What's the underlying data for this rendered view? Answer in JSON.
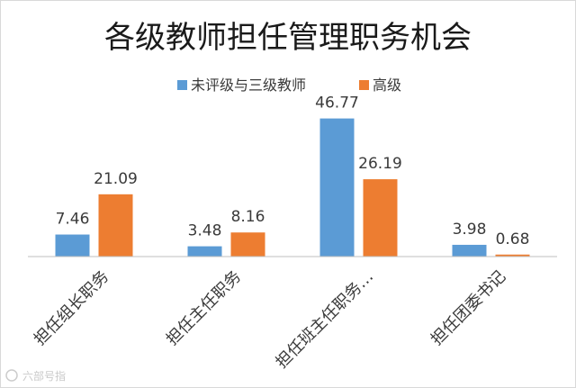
{
  "chart_data": {
    "type": "bar",
    "title": "各级教师担任管理职务机会",
    "categories": [
      "担任组长职务",
      "担任主任职务",
      "担任班主任职务…",
      "担任团委书记"
    ],
    "series": [
      {
        "name": "未评级与三级教师",
        "color": "#5b9bd5",
        "values": [
          7.46,
          3.48,
          46.77,
          3.98
        ],
        "labels": [
          "7.46",
          "3.48",
          "46.77",
          "3.98"
        ]
      },
      {
        "name": "高级",
        "color": "#ed7d31",
        "values": [
          21.09,
          8.16,
          26.19,
          0.68
        ],
        "labels": [
          "21.09",
          "8.16",
          "26.19",
          "0.68"
        ]
      }
    ],
    "ylim": [
      0,
      50
    ],
    "xlabel": "",
    "ylabel": "",
    "grid": false,
    "legend_position": "top",
    "axis_color": "#bfbfbf"
  },
  "watermark": {
    "text": "六部号指"
  }
}
